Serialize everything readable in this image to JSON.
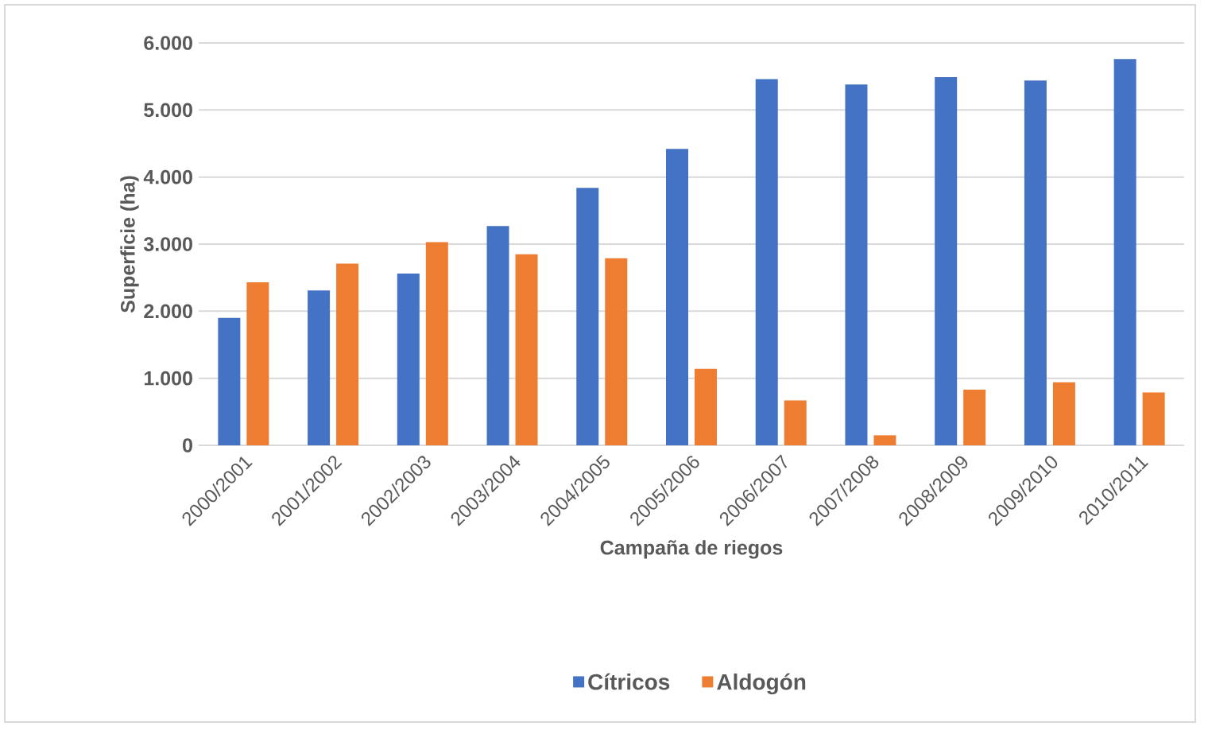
{
  "chart_data": {
    "type": "bar",
    "xlabel": "Campaña de riegos",
    "ylabel": "Superficie (ha)",
    "categories": [
      "2000/2001",
      "2001/2002",
      "2002/2003",
      "2003/2004",
      "2004/2005",
      "2005/2006",
      "2006/2007",
      "2007/2008",
      "2008/2009",
      "2009/2010",
      "2010/2011"
    ],
    "series": [
      {
        "name": "Cítricos",
        "color": "#4472c4",
        "values": [
          1900,
          2310,
          2560,
          3270,
          3840,
          4420,
          5460,
          5380,
          5490,
          5440,
          5760
        ]
      },
      {
        "name": "Aldogón",
        "color": "#ed7d31",
        "values": [
          2430,
          2710,
          3030,
          2850,
          2790,
          1140,
          670,
          150,
          830,
          940,
          790
        ]
      }
    ],
    "ylim": [
      0,
      6000
    ],
    "yticks": [
      {
        "value": 0,
        "label": "0"
      },
      {
        "value": 1000,
        "label": "1.000"
      },
      {
        "value": 2000,
        "label": "2.000"
      },
      {
        "value": 3000,
        "label": "3.000"
      },
      {
        "value": 4000,
        "label": "4.000"
      },
      {
        "value": 5000,
        "label": "5.000"
      },
      {
        "value": 6000,
        "label": "6.000"
      }
    ],
    "grid": "y",
    "legend": "bottom"
  }
}
